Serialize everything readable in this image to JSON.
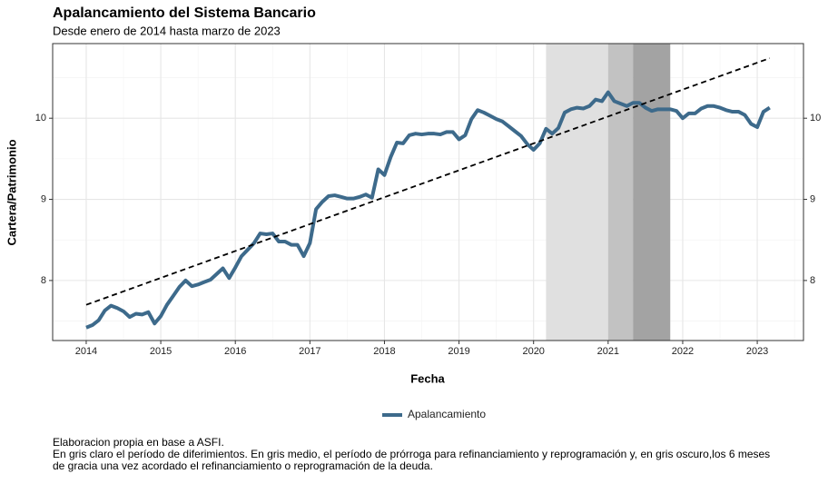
{
  "chart_data": {
    "type": "line",
    "title": "Apalancamiento del Sistema Bancario",
    "subtitle": "Desde enero de 2014 hasta marzo de 2023",
    "xlabel": "Fecha",
    "ylabel": "Cartera/Patrimonio",
    "caption": [
      "Elaboracion propia en base a ASFI.",
      "En gris claro el período de diferimientos. En gris medio, el período de prórroga para refinanciamiento y reprogramación y, en gris oscuro,los 6 meses",
      "de gracia una vez acordado el refinanciamiento o reprogramación de la deuda."
    ],
    "x": [
      2014,
      2014.083,
      2014.167,
      2014.25,
      2014.333,
      2014.417,
      2014.5,
      2014.583,
      2014.667,
      2014.75,
      2014.833,
      2014.917,
      2015,
      2015.083,
      2015.167,
      2015.25,
      2015.333,
      2015.417,
      2015.5,
      2015.583,
      2015.667,
      2015.75,
      2015.833,
      2015.917,
      2016,
      2016.083,
      2016.167,
      2016.25,
      2016.333,
      2016.417,
      2016.5,
      2016.583,
      2016.667,
      2016.75,
      2016.833,
      2016.917,
      2017,
      2017.083,
      2017.167,
      2017.25,
      2017.333,
      2017.417,
      2017.5,
      2017.583,
      2017.667,
      2017.75,
      2017.833,
      2017.917,
      2018,
      2018.083,
      2018.167,
      2018.25,
      2018.333,
      2018.417,
      2018.5,
      2018.583,
      2018.667,
      2018.75,
      2018.833,
      2018.917,
      2019,
      2019.083,
      2019.167,
      2019.25,
      2019.333,
      2019.417,
      2019.5,
      2019.583,
      2019.667,
      2019.75,
      2019.833,
      2019.917,
      2020,
      2020.083,
      2020.167,
      2020.25,
      2020.333,
      2020.417,
      2020.5,
      2020.583,
      2020.667,
      2020.75,
      2020.833,
      2020.917,
      2021,
      2021.083,
      2021.167,
      2021.25,
      2021.333,
      2021.417,
      2021.5,
      2021.583,
      2021.667,
      2021.75,
      2021.833,
      2021.917,
      2022,
      2022.083,
      2022.167,
      2022.25,
      2022.333,
      2022.417,
      2022.5,
      2022.583,
      2022.667,
      2022.75,
      2022.833,
      2022.917,
      2023,
      2023.083,
      2023.167
    ],
    "series": [
      {
        "name": "Apalancamiento",
        "color": "#3d6a8b",
        "values": [
          7.42,
          7.45,
          7.51,
          7.63,
          7.69,
          7.66,
          7.62,
          7.55,
          7.59,
          7.58,
          7.61,
          7.47,
          7.56,
          7.7,
          7.81,
          7.92,
          8.0,
          7.93,
          7.95,
          7.98,
          8.01,
          8.08,
          8.15,
          8.03,
          8.16,
          8.3,
          8.38,
          8.46,
          8.58,
          8.57,
          8.58,
          8.48,
          8.48,
          8.44,
          8.44,
          8.3,
          8.46,
          8.88,
          8.97,
          9.04,
          9.05,
          9.03,
          9.01,
          9.01,
          9.03,
          9.06,
          9.02,
          9.37,
          9.3,
          9.52,
          9.7,
          9.69,
          9.79,
          9.81,
          9.8,
          9.81,
          9.81,
          9.8,
          9.83,
          9.83,
          9.74,
          9.79,
          9.99,
          10.1,
          10.07,
          10.03,
          9.99,
          9.96,
          9.9,
          9.84,
          9.78,
          9.68,
          9.61,
          9.69,
          9.87,
          9.81,
          9.88,
          10.07,
          10.11,
          10.13,
          10.12,
          10.15,
          10.23,
          10.21,
          10.32,
          10.21,
          10.18,
          10.15,
          10.19,
          10.19,
          10.13,
          10.09,
          10.11,
          10.11,
          10.11,
          10.09,
          10.0,
          10.06,
          10.06,
          10.12,
          10.15,
          10.15,
          10.13,
          10.1,
          10.08,
          10.08,
          10.04,
          9.93,
          9.89,
          10.08,
          10.13
        ]
      }
    ],
    "trend": {
      "x": [
        2014,
        2023.167
      ],
      "values": [
        7.7,
        10.74
      ],
      "color": "#000000"
    },
    "shaded_regions": [
      {
        "start": 2020.167,
        "end": 2021.0,
        "color": "#e0e0e0"
      },
      {
        "start": 2021.0,
        "end": 2021.333,
        "color": "#c2c2c2"
      },
      {
        "start": 2021.333,
        "end": 2021.833,
        "color": "#a3a3a3"
      }
    ],
    "xlim": [
      2013.55,
      2023.62
    ],
    "xticks": [
      2014,
      2015,
      2016,
      2017,
      2018,
      2019,
      2020,
      2021,
      2022,
      2023
    ],
    "x_minor_ticks": [
      2014.5,
      2015.5,
      2016.5,
      2017.5,
      2018.5,
      2019.5,
      2020.5,
      2021.5,
      2022.5,
      2023.5
    ],
    "ylim": [
      7.26,
      10.92
    ],
    "yticks": [
      8,
      9,
      10
    ],
    "y_minor_ticks": [
      7.5,
      8.5,
      9.5,
      10.5
    ],
    "y2lim": [
      7.26,
      10.92
    ],
    "y2ticks": [
      8,
      9,
      10
    ],
    "grid": true,
    "legend": "bottom"
  }
}
